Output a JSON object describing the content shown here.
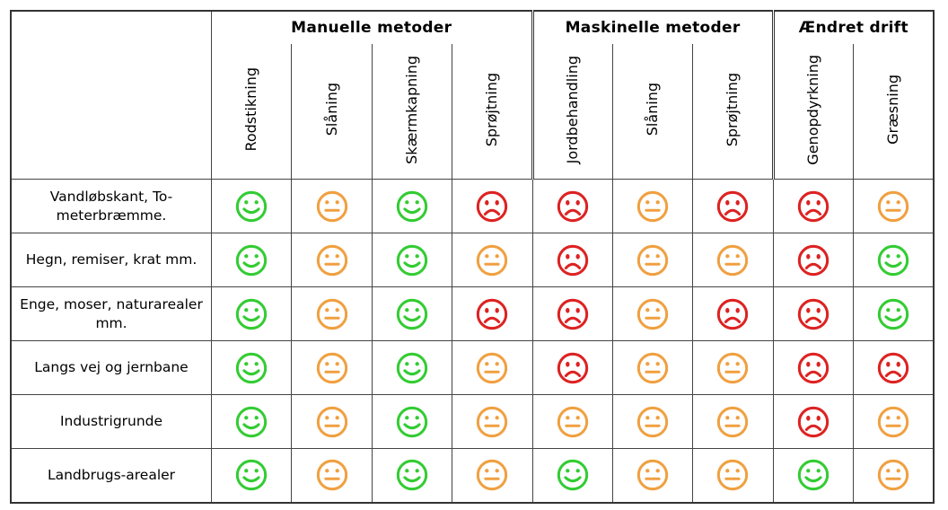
{
  "groups": [
    {
      "label": "Manuelle metoder",
      "span": 4
    },
    {
      "label": "Maskinelle metoder",
      "span": 3
    },
    {
      "label": "Ændret drift",
      "span": 2
    }
  ],
  "methods": [
    "Rodstikning",
    "Slåning",
    "Skærmkapning",
    "Sprøjtning",
    "Jordbehandling",
    "Slåning",
    "Sprøjtning",
    "Genopdyrkning",
    "Græsning"
  ],
  "rows": [
    {
      "label": "Vandløbskant, To-meterbræmme.",
      "ratings": [
        "happy",
        "neutral",
        "happy",
        "sad",
        "sad",
        "neutral",
        "sad",
        "sad",
        "neutral"
      ]
    },
    {
      "label": "Hegn, remiser, krat mm.",
      "ratings": [
        "happy",
        "neutral",
        "happy",
        "neutral",
        "sad",
        "neutral",
        "neutral",
        "sad",
        "happy"
      ]
    },
    {
      "label": "Enge, moser, naturarealer mm.",
      "ratings": [
        "happy",
        "neutral",
        "happy",
        "sad",
        "sad",
        "neutral",
        "sad",
        "sad",
        "happy"
      ]
    },
    {
      "label": "Langs vej og jernbane",
      "ratings": [
        "happy",
        "neutral",
        "happy",
        "neutral",
        "sad",
        "neutral",
        "neutral",
        "sad",
        "sad"
      ]
    },
    {
      "label": "Industrigrunde",
      "ratings": [
        "happy",
        "neutral",
        "happy",
        "neutral",
        "neutral",
        "neutral",
        "neutral",
        "sad",
        "neutral"
      ]
    },
    {
      "label": "Landbrugs-arealer",
      "ratings": [
        "happy",
        "neutral",
        "happy",
        "neutral",
        "happy",
        "neutral",
        "neutral",
        "happy",
        "neutral"
      ]
    }
  ],
  "rating_colors": {
    "happy": "#33cc33",
    "neutral": "#f0a040",
    "sad": "#dd2222"
  },
  "rating_icons": {
    "happy": "happy-face-icon",
    "neutral": "neutral-face-icon",
    "sad": "sad-face-icon"
  }
}
